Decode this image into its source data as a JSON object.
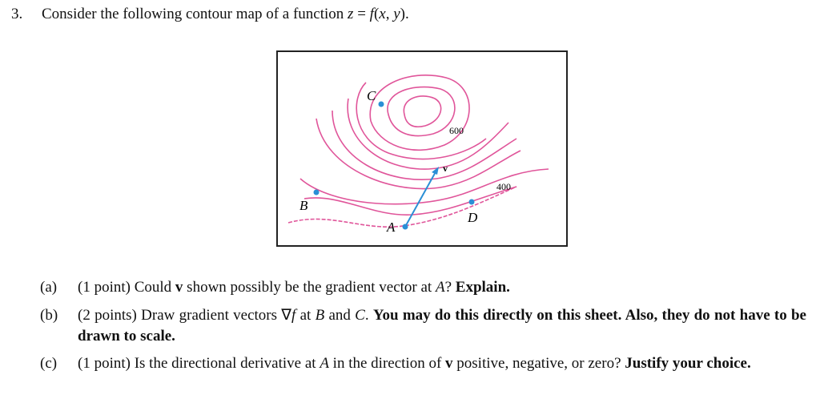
{
  "problem": {
    "number": "3.",
    "intro": [
      "Consider the following contour map of a function ",
      "z",
      " = ",
      "f",
      "(",
      "x",
      ", ",
      "y",
      ")."
    ]
  },
  "figure": {
    "labels": [
      "C",
      "600",
      "v",
      "400",
      "B",
      "A",
      "D"
    ]
  },
  "parts": [
    {
      "label": "(a)",
      "text": [
        "(1 point) Could ",
        "v",
        " shown possibly be the gradient vector at ",
        "A",
        "? ",
        "Explain."
      ]
    },
    {
      "label": "(b)",
      "text": [
        "(2 points) Draw gradient vectors ",
        "∇",
        "f",
        " at ",
        "B",
        " and ",
        "C",
        ". ",
        "You may do this directly on this sheet. Also, they do not have to be drawn to scale."
      ]
    },
    {
      "label": "(c)",
      "text": [
        "(1 point) Is the directional derivative at ",
        "A",
        " in the direction of ",
        "v",
        " positive, negative, or zero? ",
        "Justify your choice."
      ]
    }
  ]
}
